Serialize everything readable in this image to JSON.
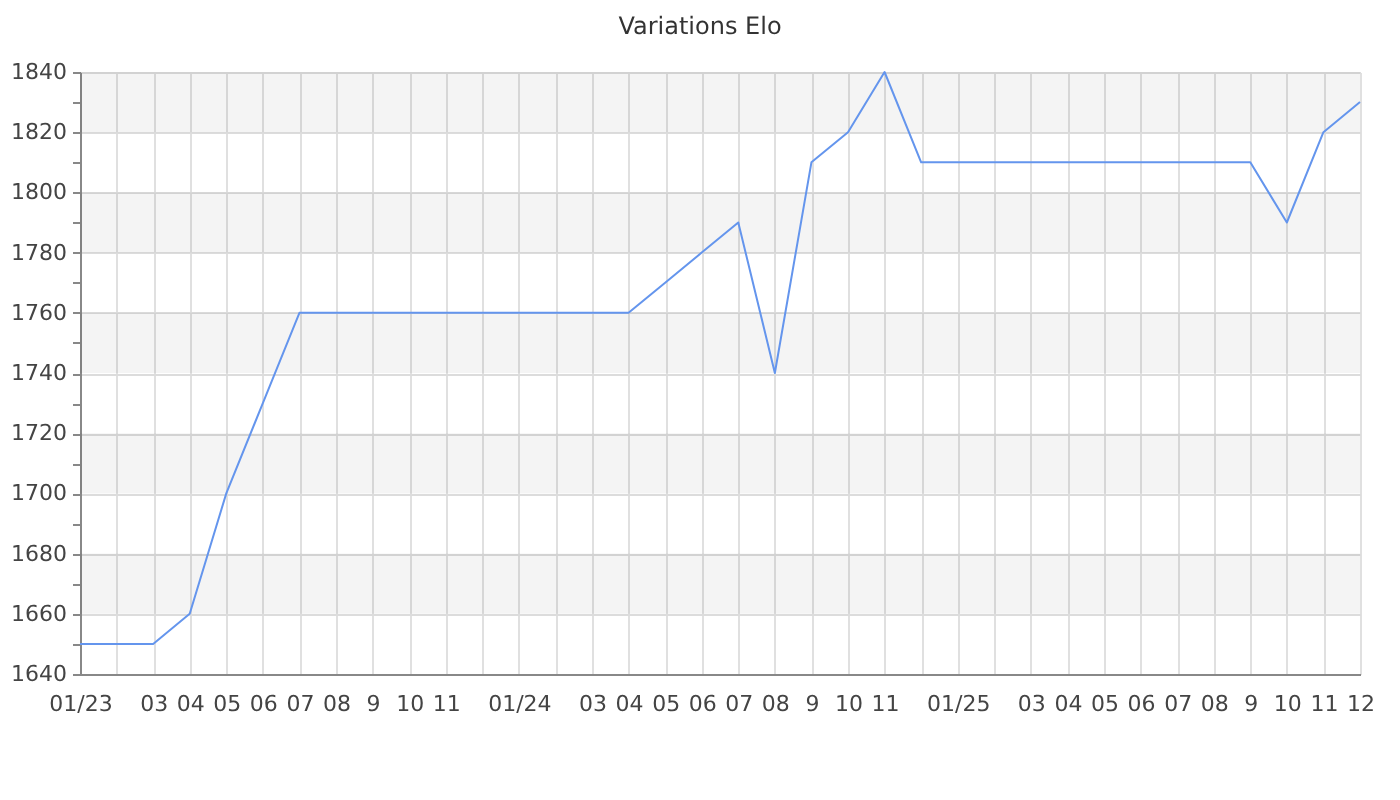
{
  "chart_data": {
    "type": "line",
    "title": "Variations Elo",
    "categories": [
      "01/23",
      null,
      "03",
      "04",
      "05",
      "06",
      "07",
      "08",
      "9",
      "10",
      "11",
      null,
      "01/24",
      null,
      "03",
      "04",
      "05",
      "06",
      "07",
      "08",
      "9",
      "10",
      "11",
      null,
      "01/25",
      null,
      "03",
      "04",
      "05",
      "06",
      "07",
      "08",
      "9",
      "10",
      "11",
      "12"
    ],
    "values": [
      1650,
      1650,
      1650,
      1660,
      1700,
      1730,
      1760,
      1760,
      1760,
      1760,
      1760,
      1760,
      1760,
      1760,
      1760,
      1760,
      1770,
      1780,
      1790,
      1740,
      1810,
      1820,
      1840,
      1810,
      1810,
      1810,
      1810,
      1810,
      1810,
      1810,
      1810,
      1810,
      1810,
      1790,
      1820,
      1830
    ],
    "color": "#6495ed",
    "ylim": [
      1640,
      1840
    ],
    "yticks": [
      1640,
      {
        "value": 1650,
        "label": null
      },
      1660,
      {
        "value": 1670,
        "label": null
      },
      1680,
      {
        "value": 1690,
        "label": null
      },
      1700,
      {
        "value": 1710,
        "label": null
      },
      1720,
      {
        "value": 1730,
        "label": null
      },
      1740,
      {
        "value": 1750,
        "label": null
      },
      1760,
      {
        "value": 1770,
        "label": null
      },
      1780,
      {
        "value": 1790,
        "label": null
      },
      1800,
      {
        "value": 1810,
        "label": null
      },
      1820,
      {
        "value": 1830,
        "label": null
      },
      1840
    ],
    "grid": true
  }
}
